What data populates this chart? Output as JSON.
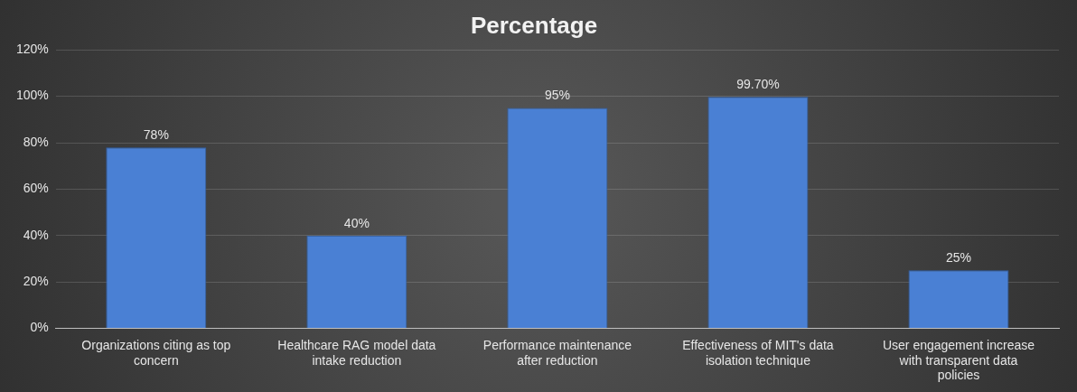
{
  "chart_data": {
    "type": "bar",
    "title": "Percentage",
    "categories": [
      "Organizations citing as top concern",
      "Healthcare RAG model data intake reduction",
      "Performance maintenance after reduction",
      "Effectiveness of MIT's data isolation technique",
      "User engagement increase with transparent data policies"
    ],
    "values": [
      78,
      40,
      95,
      99.7,
      25
    ],
    "value_labels": [
      "78%",
      "40%",
      "95%",
      "99.70%",
      "25%"
    ],
    "color": "#4a80d4",
    "ylim": [
      0,
      120
    ],
    "yticks": [
      {
        "value": 0,
        "label": "0%"
      },
      {
        "value": 20,
        "label": "20%"
      },
      {
        "value": 40,
        "label": "40%"
      },
      {
        "value": 60,
        "label": "60%"
      },
      {
        "value": 80,
        "label": "80%"
      },
      {
        "value": 100,
        "label": "100%"
      },
      {
        "value": 120,
        "label": "120%"
      }
    ],
    "grid": "y",
    "legend": false
  }
}
